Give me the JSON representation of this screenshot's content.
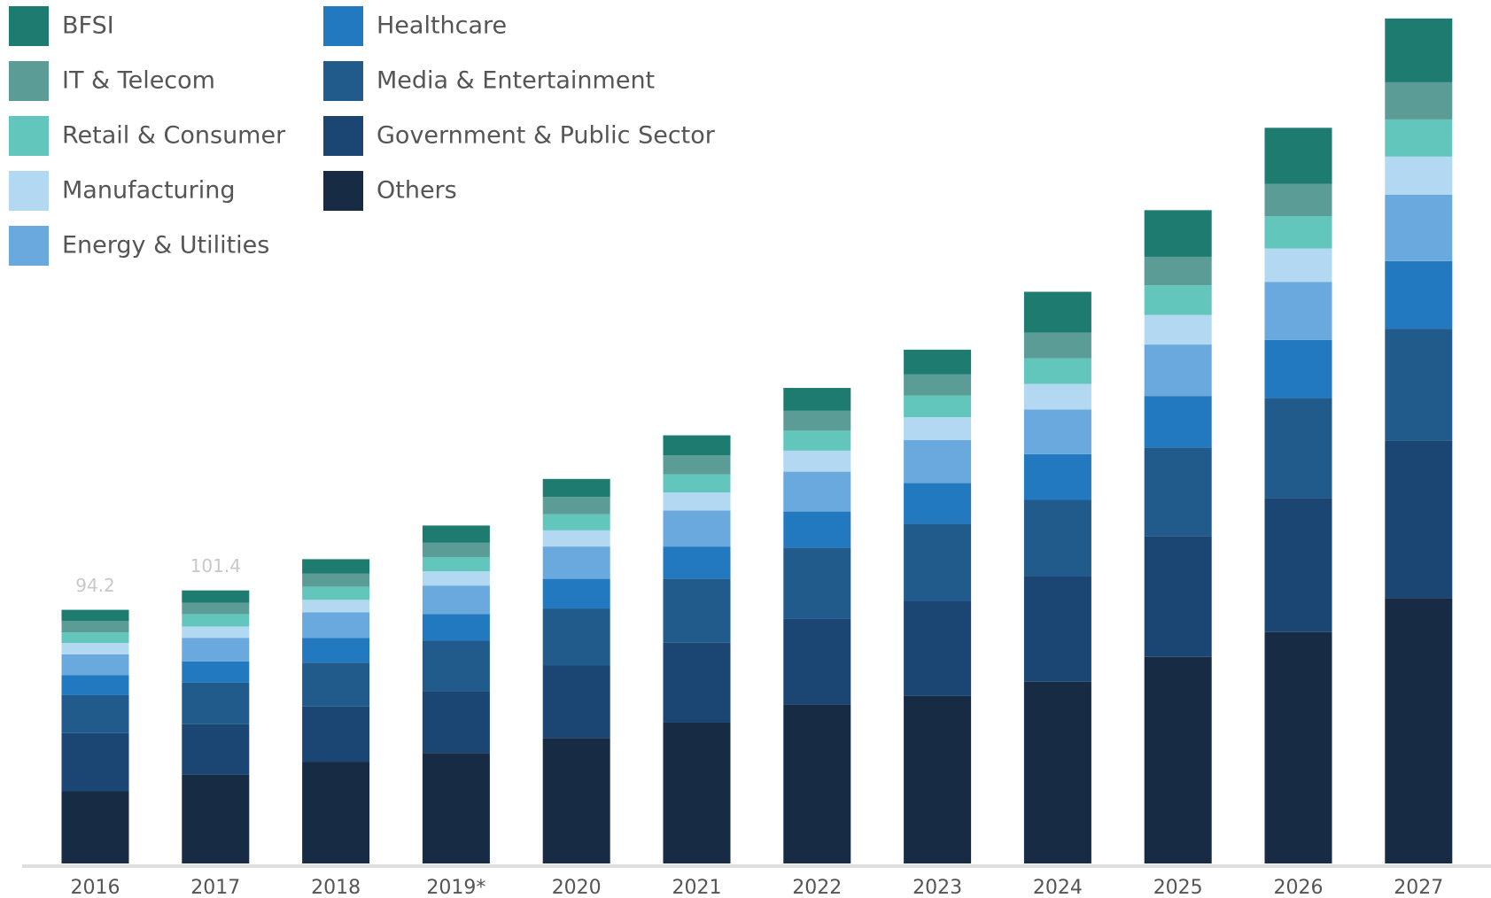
{
  "chart_data": {
    "type": "stacked_bar",
    "categories": [
      "2016",
      "2017",
      "2018",
      "2019*",
      "2020",
      "2021",
      "2022",
      "2023",
      "2024",
      "2025",
      "2026",
      "2027"
    ],
    "series": [
      {
        "name": "BFSI",
        "color": "#1e7b70",
        "values": [
          4.2,
          4.6,
          5.3,
          6.4,
          6.7,
          7.4,
          8.5,
          9.2,
          15.2,
          17.3,
          20.8,
          23.7
        ]
      },
      {
        "name": "IT & Telecom",
        "color": "#5c9c96",
        "values": [
          4.2,
          4.2,
          4.9,
          5.3,
          6.4,
          7.1,
          7.4,
          7.8,
          9.5,
          10.6,
          12.0,
          13.8
        ]
      },
      {
        "name": "Retail & Consumer",
        "color": "#62c6bd",
        "values": [
          3.9,
          4.6,
          4.9,
          5.3,
          6.0,
          6.7,
          7.4,
          8.1,
          9.5,
          11.0,
          12.0,
          13.8
        ]
      },
      {
        "name": "Manufacturing",
        "color": "#b3d9f2",
        "values": [
          4.2,
          4.2,
          4.6,
          5.3,
          6.0,
          6.7,
          7.8,
          8.5,
          9.5,
          11.0,
          12.4,
          14.1
        ]
      },
      {
        "name": "Energy & Utilities",
        "color": "#6aa9dd",
        "values": [
          7.8,
          8.8,
          9.5,
          10.6,
          12.0,
          13.4,
          14.8,
          15.9,
          16.6,
          19.1,
          21.6,
          24.7
        ]
      },
      {
        "name": "Healthcare",
        "color": "#2379c0",
        "values": [
          7.4,
          7.8,
          9.2,
          9.9,
          11.0,
          12.0,
          13.4,
          15.2,
          17.0,
          19.1,
          21.6,
          25.1
        ]
      },
      {
        "name": "Media & Entertainment",
        "color": "#215b8c",
        "values": [
          14.1,
          15.5,
          16.3,
          18.7,
          21.2,
          23.7,
          26.5,
          28.6,
          28.3,
          32.9,
          37.1,
          41.7
        ]
      },
      {
        "name": "Government & Public Sector",
        "color": "#1b4673",
        "values": [
          21.6,
          18.7,
          20.5,
          23.0,
          26.9,
          29.7,
          31.8,
          35.3,
          39.2,
          44.9,
          49.8,
          58.3
        ]
      },
      {
        "name": "Others",
        "color": "#172b44",
        "values": [
          26.8,
          33.0,
          37.8,
          41.0,
          46.6,
          52.3,
          59.0,
          62.2,
          67.5,
          76.7,
          85.9,
          98.6
        ]
      }
    ],
    "totals": [
      94.2,
      101.4,
      null,
      null,
      null,
      null,
      null,
      null,
      null,
      null,
      null,
      null
    ],
    "ylim": [
      0,
      320
    ]
  }
}
